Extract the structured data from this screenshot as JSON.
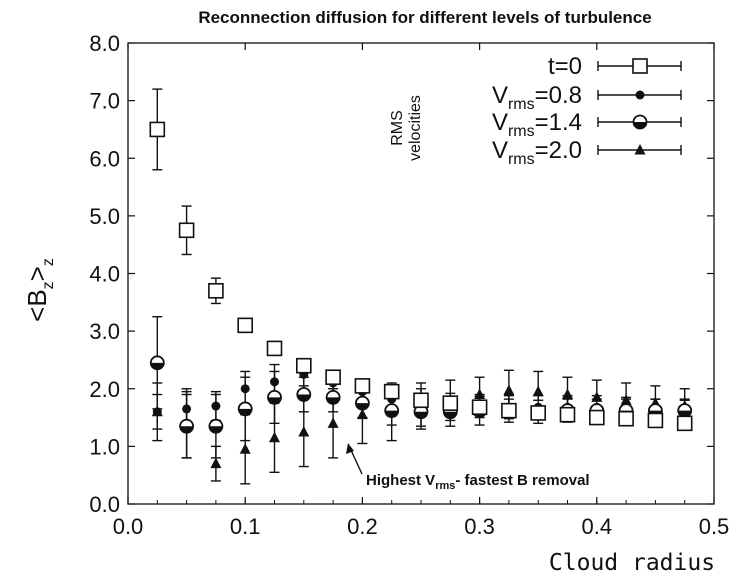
{
  "chart_data": {
    "type": "scatter",
    "title": "Reconnection diffusion for different levels of turbulence",
    "xlabel": "Cloud radius",
    "ylabel_main": "<B",
    "ylabel_sub1": "z",
    "ylabel_close": ">",
    "ylabel_sub2": "z",
    "xlim": [
      0.0,
      0.5
    ],
    "ylim": [
      0.0,
      8.0
    ],
    "xticks": [
      "0.0",
      "0.1",
      "0.2",
      "0.3",
      "0.4",
      "0.5"
    ],
    "yticks": [
      "0.0",
      "1.0",
      "2.0",
      "3.0",
      "4.0",
      "5.0",
      "6.0",
      "7.0",
      "8.0"
    ],
    "x": [
      0.025,
      0.05,
      0.075,
      0.1,
      0.125,
      0.15,
      0.175,
      0.2,
      0.225,
      0.25,
      0.275,
      0.3,
      0.325,
      0.35,
      0.375,
      0.4,
      0.425,
      0.45,
      0.475
    ],
    "series": [
      {
        "name": "t=0",
        "legend_text": "t=0",
        "marker": "open-square",
        "values": [
          6.5,
          4.75,
          3.7,
          3.1,
          2.7,
          2.4,
          2.2,
          2.05,
          1.95,
          1.8,
          1.75,
          1.68,
          1.62,
          1.58,
          1.55,
          1.5,
          1.48,
          1.45,
          1.4
        ],
        "errors": [
          0.7,
          0.42,
          0.22,
          0.1,
          0.08,
          0.08,
          0.12,
          0.1,
          0.1,
          0.12,
          0.1,
          0.1,
          0.08,
          0.08,
          0.08,
          0.08,
          0.08,
          0.08,
          0.08
        ]
      },
      {
        "name": "Vrms=0.8",
        "legend_prefix": "V",
        "legend_sub": "rms",
        "legend_value": "=0.8",
        "marker": "filled-circle",
        "values": [
          1.6,
          1.65,
          1.7,
          2.0,
          2.12,
          2.25,
          2.1,
          1.95,
          1.82,
          1.8,
          1.72,
          1.7,
          1.68,
          1.68,
          1.68,
          1.68,
          1.65,
          1.62,
          1.6
        ],
        "errors": [
          0.3,
          0.3,
          0.25,
          0.3,
          0.3,
          0.2,
          0.2,
          0.2,
          0.2,
          0.2,
          0.2,
          0.2,
          0.2,
          0.2,
          0.2,
          0.2,
          0.2,
          0.2,
          0.2
        ]
      },
      {
        "name": "Vrms=1.4",
        "legend_prefix": "V",
        "legend_sub": "rms",
        "legend_value": "=1.4",
        "marker": "half-circle",
        "values": [
          2.45,
          1.35,
          1.35,
          1.65,
          1.85,
          1.9,
          1.85,
          1.75,
          1.62,
          1.6,
          1.6,
          1.62,
          1.62,
          1.6,
          1.62,
          1.62,
          1.62,
          1.62,
          1.62
        ],
        "errors": [
          0.8,
          0.55,
          0.55,
          0.55,
          0.45,
          0.3,
          0.25,
          0.25,
          0.25,
          0.25,
          0.25,
          0.25,
          0.2,
          0.2,
          0.2,
          0.2,
          0.2,
          0.2,
          0.2
        ]
      },
      {
        "name": "Vrms=2.0",
        "legend_prefix": "V",
        "legend_sub": "rms",
        "legend_value": "=2.0",
        "marker": "filled-triangle",
        "values": [
          1.6,
          1.4,
          0.7,
          0.95,
          1.15,
          1.25,
          1.4,
          1.55,
          1.6,
          1.7,
          1.8,
          1.9,
          1.97,
          1.95,
          1.9,
          1.85,
          1.8,
          1.75,
          1.7
        ],
        "errors": [
          0.5,
          0.6,
          0.3,
          0.6,
          0.6,
          0.6,
          0.6,
          0.5,
          0.5,
          0.4,
          0.35,
          0.3,
          0.35,
          0.35,
          0.3,
          0.3,
          0.3,
          0.3,
          0.3
        ]
      }
    ],
    "legend_position": "top-right",
    "rms_label_line1": "RMS",
    "rms_label_line2": "velocities",
    "annotation": {
      "prefix": "Highest V",
      "sub": "rms",
      "suffix": "- fastest B removal",
      "points_to_x": 0.175,
      "points_to_y": 1.3
    },
    "grid": false
  }
}
